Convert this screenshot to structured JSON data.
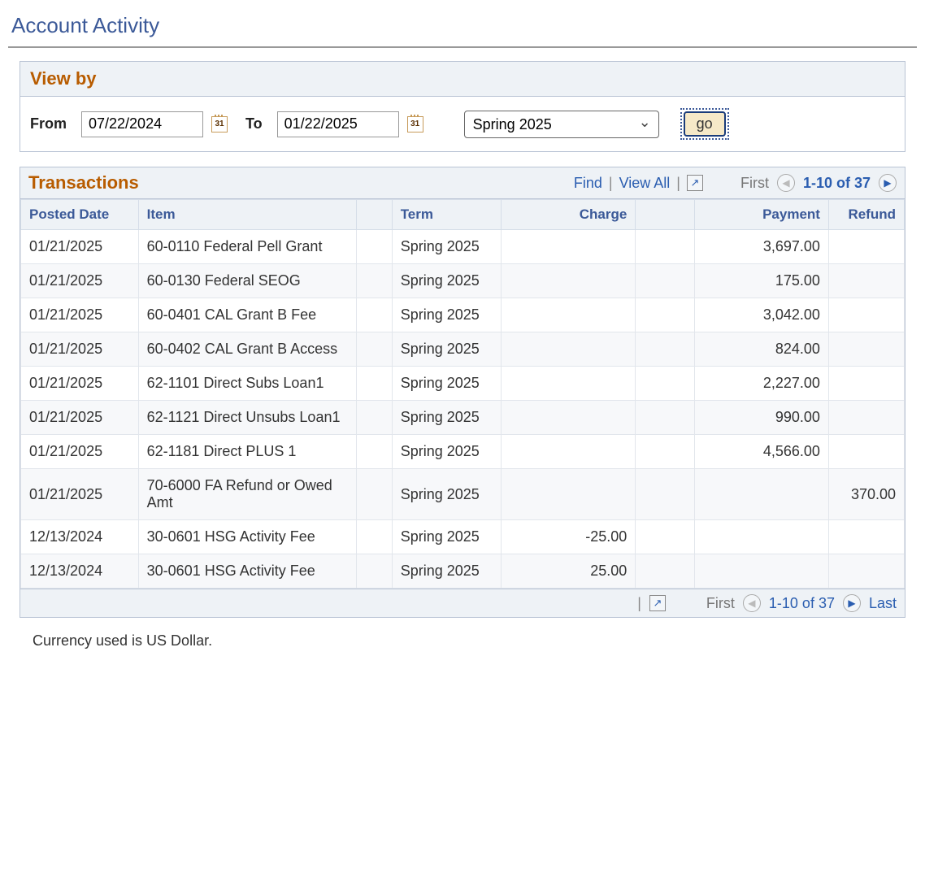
{
  "page_title": "Account Activity",
  "viewby": {
    "header": "View by",
    "from_label": "From",
    "to_label": "To",
    "from_value": "07/22/2024",
    "to_value": "01/22/2025",
    "term_selected": "Spring 2025",
    "go_label": "go",
    "cal_glyph": "31"
  },
  "transactions": {
    "header": "Transactions",
    "find_label": "Find",
    "view_all_label": "View All",
    "first_label": "First",
    "last_label": "Last",
    "range_label": "1-10 of 37",
    "popout_glyph": "↗",
    "columns": {
      "posted_date": "Posted Date",
      "item": "Item",
      "spacer": "",
      "term": "Term",
      "charge": "Charge",
      "spacer2": "",
      "payment": "Payment",
      "refund": "Refund"
    },
    "rows": [
      {
        "date": "01/21/2025",
        "item": "60-0110 Federal Pell Grant",
        "term": "Spring 2025",
        "charge": "",
        "payment": "3,697.00",
        "refund": ""
      },
      {
        "date": "01/21/2025",
        "item": "60-0130 Federal SEOG",
        "term": "Spring 2025",
        "charge": "",
        "payment": "175.00",
        "refund": ""
      },
      {
        "date": "01/21/2025",
        "item": "60-0401 CAL Grant B Fee",
        "term": "Spring 2025",
        "charge": "",
        "payment": "3,042.00",
        "refund": ""
      },
      {
        "date": "01/21/2025",
        "item": "60-0402 CAL Grant B Access",
        "term": "Spring 2025",
        "charge": "",
        "payment": "824.00",
        "refund": ""
      },
      {
        "date": "01/21/2025",
        "item": "62-1101 Direct Subs Loan1",
        "term": "Spring 2025",
        "charge": "",
        "payment": "2,227.00",
        "refund": ""
      },
      {
        "date": "01/21/2025",
        "item": "62-1121 Direct Unsubs Loan1",
        "term": "Spring 2025",
        "charge": "",
        "payment": "990.00",
        "refund": ""
      },
      {
        "date": "01/21/2025",
        "item": "62-1181 Direct PLUS 1",
        "term": "Spring 2025",
        "charge": "",
        "payment": "4,566.00",
        "refund": ""
      },
      {
        "date": "01/21/2025",
        "item": "70-6000 FA Refund or Owed Amt",
        "term": "Spring 2025",
        "charge": "",
        "payment": "",
        "refund": "370.00"
      },
      {
        "date": "12/13/2024",
        "item": "30-0601 HSG Activity Fee",
        "term": "Spring 2025",
        "charge": "-25.00",
        "payment": "",
        "refund": ""
      },
      {
        "date": "12/13/2024",
        "item": "30-0601 HSG Activity Fee",
        "term": "Spring 2025",
        "charge": "25.00",
        "payment": "",
        "refund": ""
      }
    ],
    "col_widths": {
      "date": "140px",
      "item": "260px",
      "spacer": "42px",
      "term": "130px",
      "charge": "160px",
      "spacer2": "70px",
      "payment": "160px",
      "refund": "90px"
    }
  },
  "currency_note": "Currency used is US Dollar."
}
